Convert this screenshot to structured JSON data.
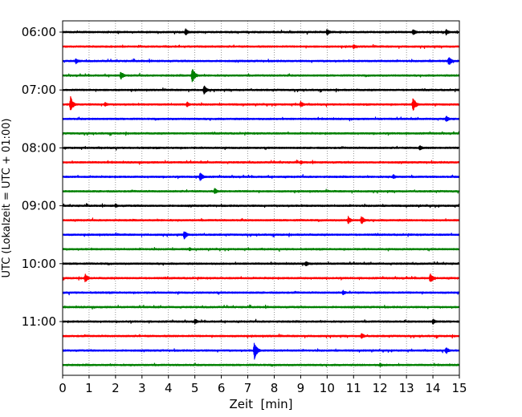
{
  "chart_data": {
    "type": "line",
    "title": "",
    "xlabel": "Zeit  [min]",
    "ylabel": "UTC (Lokalzeit = UTC + 01:00)",
    "xlim": [
      0,
      15
    ],
    "x_ticks": [
      "0",
      "1",
      "2",
      "3",
      "4",
      "5",
      "6",
      "7",
      "8",
      "9",
      "10",
      "11",
      "12",
      "13",
      "14",
      "15"
    ],
    "y_tick_labels": [
      "06:00",
      "07:00",
      "08:00",
      "09:00",
      "10:00",
      "11:00"
    ],
    "y_tick_rows": [
      0,
      4,
      8,
      12,
      16,
      20
    ],
    "grid": "vertical dotted lines at each minute",
    "trace_colors": [
      "#000000",
      "#ff0000",
      "#0000ff",
      "#008000"
    ],
    "rows": [
      {
        "start": "06:00",
        "color": "#000000",
        "events": [
          {
            "t": 4.65,
            "amp": 0.55
          },
          {
            "t": 10.0,
            "amp": 0.5
          },
          {
            "t": 13.25,
            "amp": 0.5
          },
          {
            "t": 14.5,
            "amp": 0.45
          }
        ]
      },
      {
        "start": "06:15",
        "color": "#ff0000",
        "events": [
          {
            "t": 11.0,
            "amp": 0.35
          }
        ]
      },
      {
        "start": "06:30",
        "color": "#0000ff",
        "events": [
          {
            "t": 0.5,
            "amp": 0.4
          },
          {
            "t": 14.6,
            "amp": 0.7
          }
        ]
      },
      {
        "start": "06:45",
        "color": "#008000",
        "events": [
          {
            "t": 2.2,
            "amp": 0.6
          },
          {
            "t": 4.9,
            "amp": 1.15
          }
        ]
      },
      {
        "start": "07:00",
        "color": "#000000",
        "events": [
          {
            "t": 5.35,
            "amp": 0.65
          }
        ]
      },
      {
        "start": "07:15",
        "color": "#ff0000",
        "events": [
          {
            "t": 0.3,
            "amp": 1.1
          },
          {
            "t": 1.6,
            "amp": 0.35
          },
          {
            "t": 4.7,
            "amp": 0.4
          },
          {
            "t": 9.0,
            "amp": 0.45
          },
          {
            "t": 13.25,
            "amp": 1.05
          }
        ]
      },
      {
        "start": "07:30",
        "color": "#0000ff",
        "events": [
          {
            "t": 14.5,
            "amp": 0.45
          }
        ]
      },
      {
        "start": "07:45",
        "color": "#008000",
        "events": []
      },
      {
        "start": "08:00",
        "color": "#000000",
        "events": [
          {
            "t": 13.5,
            "amp": 0.4
          }
        ]
      },
      {
        "start": "08:15",
        "color": "#ff0000",
        "events": [
          {
            "t": 9.0,
            "amp": 0.3
          }
        ]
      },
      {
        "start": "08:30",
        "color": "#0000ff",
        "events": [
          {
            "t": 5.2,
            "amp": 0.7
          },
          {
            "t": 12.5,
            "amp": 0.35
          }
        ]
      },
      {
        "start": "08:45",
        "color": "#008000",
        "events": [
          {
            "t": 5.75,
            "amp": 0.45
          }
        ]
      },
      {
        "start": "09:00",
        "color": "#000000",
        "events": [
          {
            "t": 2.0,
            "amp": 0.3
          }
        ]
      },
      {
        "start": "09:15",
        "color": "#ff0000",
        "events": [
          {
            "t": 10.8,
            "amp": 0.55
          },
          {
            "t": 11.3,
            "amp": 0.6
          }
        ]
      },
      {
        "start": "09:30",
        "color": "#0000ff",
        "events": [
          {
            "t": 4.6,
            "amp": 0.65
          }
        ]
      },
      {
        "start": "09:45",
        "color": "#008000",
        "events": [
          {
            "t": 4.8,
            "amp": 0.25
          }
        ]
      },
      {
        "start": "10:00",
        "color": "#000000",
        "events": [
          {
            "t": 9.2,
            "amp": 0.4
          }
        ]
      },
      {
        "start": "10:15",
        "color": "#ff0000",
        "events": [
          {
            "t": 0.85,
            "amp": 0.65
          },
          {
            "t": 13.9,
            "amp": 0.75
          }
        ]
      },
      {
        "start": "10:30",
        "color": "#0000ff",
        "events": [
          {
            "t": 10.6,
            "amp": 0.35
          }
        ]
      },
      {
        "start": "10:45",
        "color": "#008000",
        "events": []
      },
      {
        "start": "11:00",
        "color": "#000000",
        "events": [
          {
            "t": 5.0,
            "amp": 0.4
          },
          {
            "t": 14.0,
            "amp": 0.4
          }
        ]
      },
      {
        "start": "11:15",
        "color": "#ff0000",
        "events": [
          {
            "t": 11.3,
            "amp": 0.45
          }
        ]
      },
      {
        "start": "11:30",
        "color": "#0000ff",
        "events": [
          {
            "t": 7.25,
            "amp": 1.25
          },
          {
            "t": 14.5,
            "amp": 0.5
          }
        ]
      },
      {
        "start": "11:45",
        "color": "#008000",
        "events": [
          {
            "t": 12.0,
            "amp": 0.3
          }
        ]
      }
    ]
  }
}
